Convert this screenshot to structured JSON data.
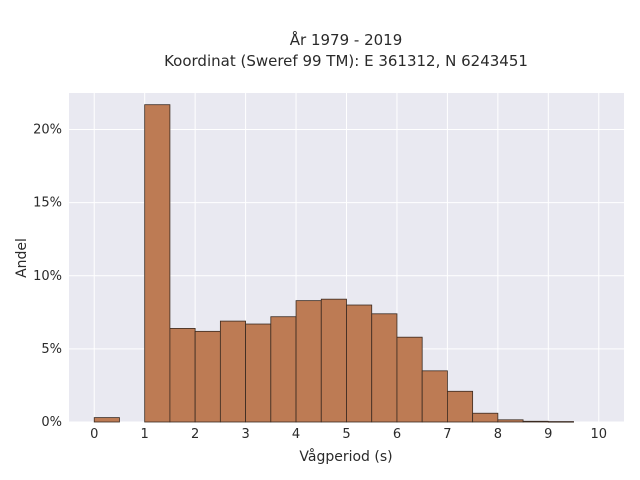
{
  "chart_data": {
    "type": "bar",
    "title_line1": "År 1979 - 2019",
    "title_line2": "Koordinat (Sweref 99 TM): E 361312, N 6243451",
    "xlabel": "Vågperiod (s)",
    "ylabel": "Andel",
    "xlim": [
      -0.5,
      10.5
    ],
    "ylim": [
      0,
      0.225
    ],
    "x_ticks": [
      0,
      1,
      2,
      3,
      4,
      5,
      6,
      7,
      8,
      9,
      10
    ],
    "y_ticks": [
      0,
      0.05,
      0.1,
      0.15,
      0.2
    ],
    "y_tick_labels": [
      "0%",
      "5%",
      "10%",
      "15%",
      "20%"
    ],
    "bin_width": 0.5,
    "bins": [
      {
        "start": 0.0,
        "value": 0.003
      },
      {
        "start": 0.5,
        "value": 0.0
      },
      {
        "start": 1.0,
        "value": 0.217
      },
      {
        "start": 1.5,
        "value": 0.064
      },
      {
        "start": 2.0,
        "value": 0.062
      },
      {
        "start": 2.5,
        "value": 0.069
      },
      {
        "start": 3.0,
        "value": 0.067
      },
      {
        "start": 3.5,
        "value": 0.072
      },
      {
        "start": 4.0,
        "value": 0.083
      },
      {
        "start": 4.5,
        "value": 0.084
      },
      {
        "start": 5.0,
        "value": 0.08
      },
      {
        "start": 5.5,
        "value": 0.074
      },
      {
        "start": 6.0,
        "value": 0.058
      },
      {
        "start": 6.5,
        "value": 0.035
      },
      {
        "start": 7.0,
        "value": 0.021
      },
      {
        "start": 7.5,
        "value": 0.006
      },
      {
        "start": 8.0,
        "value": 0.0015
      },
      {
        "start": 8.5,
        "value": 0.0005
      },
      {
        "start": 9.0,
        "value": 0.0003
      }
    ],
    "grid": true,
    "colors": {
      "bar_fill": "#bd7b54",
      "bar_edge": "#3a2a20",
      "plot_bg": "#e9e9f1",
      "grid": "#ffffff"
    }
  }
}
